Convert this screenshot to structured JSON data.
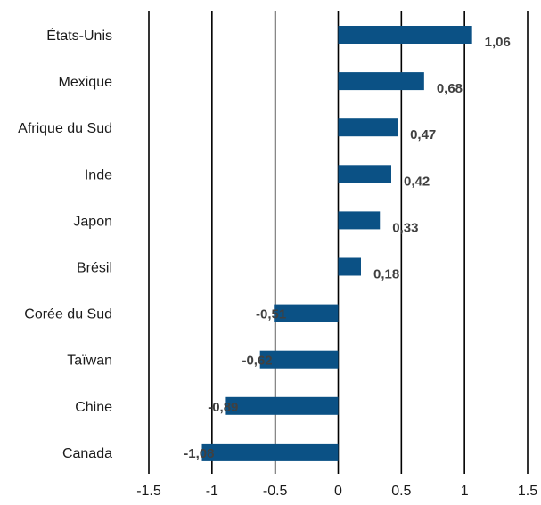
{
  "chart_data": {
    "type": "bar",
    "orientation": "horizontal",
    "categories": [
      "États-Unis",
      "Mexique",
      "Afrique du Sud",
      "Inde",
      "Japon",
      "Brésil",
      "Corée du Sud",
      "Taïwan",
      "Chine",
      "Canada"
    ],
    "values": [
      1.06,
      0.68,
      0.47,
      0.42,
      0.33,
      0.18,
      -0.51,
      -0.62,
      -0.89,
      -1.08
    ],
    "data_labels": [
      "1,06",
      "0,68",
      "0,47",
      "0,42",
      "0,33",
      "0,18",
      "-0,51",
      "-0,62",
      "-0,89",
      "-1,08"
    ],
    "xlim": [
      -1.5,
      1.5
    ],
    "x_ticks": [
      -1.5,
      -1,
      -0.5,
      0,
      0.5,
      1,
      1.5
    ],
    "x_tick_labels": [
      "-1.5",
      "-1",
      "-0.5",
      "0",
      "0.5",
      "1",
      "1.5"
    ],
    "grid": "vertical lines at x ticks",
    "bar_color": "#0b5185",
    "title": "",
    "xlabel": "",
    "ylabel": ""
  }
}
